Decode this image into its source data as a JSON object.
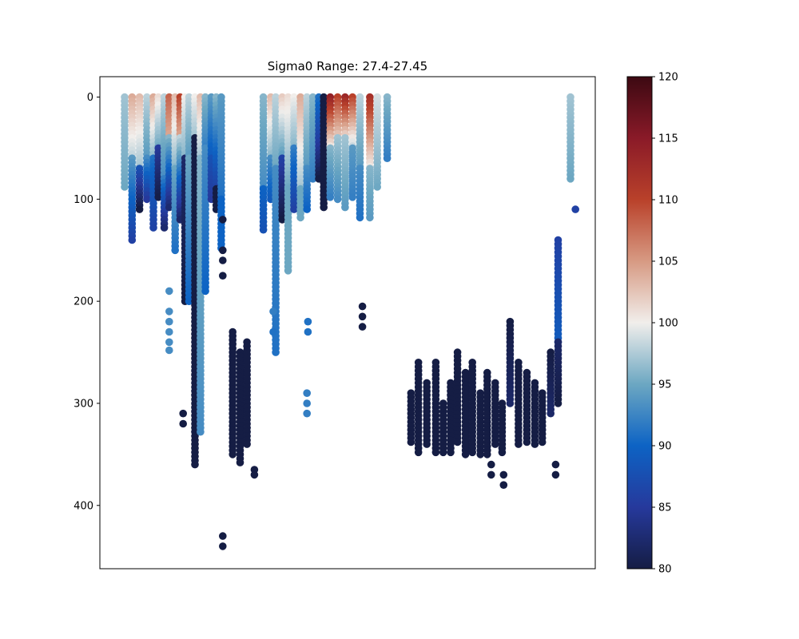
{
  "chart_data": {
    "type": "scatter",
    "title": "Sigma0 Range: 27.4-27.45",
    "xlabel": "",
    "ylabel": "",
    "y_inverted": true,
    "ylim": [
      462,
      -20
    ],
    "y_ticks": [
      0,
      100,
      200,
      300,
      400
    ],
    "x_ticks": [],
    "colormap": "balance (navy - blue - light gray - red - dark maroon)",
    "colorbar": {
      "vmin": 80,
      "vmax": 120,
      "ticks": [
        80,
        85,
        90,
        95,
        100,
        105,
        110,
        115,
        120
      ]
    },
    "profiles": [
      {
        "x": 0.05,
        "segments": [
          [
            0,
            90,
            97,
            95
          ]
        ]
      },
      {
        "x": 0.065,
        "segments": [
          [
            0,
            60,
            104,
            98
          ],
          [
            60,
            140,
            94,
            86
          ]
        ]
      },
      {
        "x": 0.08,
        "segments": [
          [
            0,
            70,
            103,
            97
          ],
          [
            70,
            110,
            88,
            80
          ]
        ]
      },
      {
        "x": 0.095,
        "segments": [
          [
            0,
            60,
            98,
            94
          ],
          [
            60,
            100,
            93,
            85
          ]
        ]
      },
      {
        "x": 0.108,
        "segments": [
          [
            0,
            60,
            104,
            96
          ],
          [
            60,
            130,
            91,
            86
          ]
        ]
      },
      {
        "x": 0.118,
        "segments": [
          [
            0,
            50,
            101,
            95
          ],
          [
            50,
            100,
            85,
            80
          ]
        ]
      },
      {
        "x": 0.13,
        "segments": [
          [
            0,
            80,
            98,
            93
          ],
          [
            80,
            130,
            92,
            82
          ]
        ]
      },
      {
        "x": 0.14,
        "segments": [
          [
            0,
            40,
            108,
            104
          ],
          [
            40,
            110,
            96,
            82
          ]
        ]
      },
      {
        "x": 0.152,
        "segments": [
          [
            0,
            70,
            103,
            96
          ],
          [
            70,
            150,
            95,
            91
          ]
        ]
      },
      {
        "x": 0.162,
        "segments": [
          [
            0,
            40,
            110,
            104
          ],
          [
            40,
            120,
            98,
            82
          ]
        ]
      },
      {
        "x": 0.172,
        "segments": [
          [
            0,
            60,
            100,
            96
          ],
          [
            60,
            200,
            82,
            80
          ]
        ]
      },
      {
        "x": 0.18,
        "segments": [
          [
            0,
            60,
            98,
            94
          ],
          [
            60,
            200,
            95,
            90
          ]
        ]
      },
      {
        "x": 0.192,
        "segments": [
          [
            0,
            40,
            100,
            97
          ],
          [
            40,
            360,
            80,
            80
          ]
        ]
      },
      {
        "x": 0.203,
        "segments": [
          [
            0,
            60,
            103,
            97
          ],
          [
            60,
            330,
            96,
            93
          ]
        ]
      },
      {
        "x": 0.213,
        "segments": [
          [
            0,
            50,
            96,
            92
          ],
          [
            50,
            190,
            93,
            90
          ]
        ]
      },
      {
        "x": 0.225,
        "segments": [
          [
            0,
            60,
            94,
            89
          ],
          [
            60,
            100,
            88,
            85
          ]
        ]
      },
      {
        "x": 0.235,
        "segments": [
          [
            0,
            90,
            96,
            86
          ],
          [
            90,
            110,
            80,
            80
          ]
        ]
      },
      {
        "x": 0.245,
        "segments": [
          [
            0,
            100,
            94,
            91
          ],
          [
            100,
            150,
            90,
            90
          ]
        ]
      },
      {
        "x": 0.268,
        "segments": [
          [
            230,
            350,
            80,
            80
          ]
        ]
      },
      {
        "x": 0.283,
        "segments": [
          [
            250,
            360,
            80,
            80
          ]
        ]
      },
      {
        "x": 0.297,
        "segments": [
          [
            240,
            340,
            80,
            80
          ]
        ]
      },
      {
        "x": 0.33,
        "segments": [
          [
            0,
            90,
            96,
            93
          ],
          [
            90,
            130,
            90,
            88
          ]
        ]
      },
      {
        "x": 0.345,
        "segments": [
          [
            0,
            60,
            103,
            96
          ],
          [
            60,
            100,
            93,
            89
          ]
        ]
      },
      {
        "x": 0.355,
        "segments": [
          [
            0,
            70,
            98,
            95
          ],
          [
            70,
            250,
            93,
            91
          ]
        ]
      },
      {
        "x": 0.368,
        "segments": [
          [
            0,
            60,
            102,
            94
          ],
          [
            60,
            120,
            86,
            80
          ]
        ]
      },
      {
        "x": 0.38,
        "segments": [
          [
            0,
            90,
            101,
            95
          ],
          [
            90,
            170,
            95,
            95
          ]
        ]
      },
      {
        "x": 0.392,
        "segments": [
          [
            0,
            50,
            100,
            96
          ],
          [
            50,
            110,
            92,
            86
          ]
        ]
      },
      {
        "x": 0.405,
        "segments": [
          [
            0,
            90,
            104,
            97
          ],
          [
            90,
            120,
            95,
            95
          ]
        ]
      },
      {
        "x": 0.418,
        "segments": [
          [
            0,
            70,
            98,
            94
          ],
          [
            70,
            110,
            93,
            90
          ]
        ]
      },
      {
        "x": 0.43,
        "segments": [
          [
            0,
            80,
            96,
            92
          ]
        ]
      },
      {
        "x": 0.442,
        "segments": [
          [
            0,
            40,
            91,
            86
          ],
          [
            40,
            80,
            86,
            80
          ]
        ]
      },
      {
        "x": 0.452,
        "segments": [
          [
            0,
            110,
            80,
            80
          ]
        ]
      },
      {
        "x": 0.465,
        "segments": [
          [
            0,
            50,
            114,
            100
          ],
          [
            50,
            100,
            96,
            92
          ]
        ]
      },
      {
        "x": 0.48,
        "segments": [
          [
            0,
            40,
            110,
            102
          ],
          [
            40,
            100,
            97,
            93
          ]
        ]
      },
      {
        "x": 0.495,
        "segments": [
          [
            0,
            40,
            113,
            101
          ],
          [
            40,
            110,
            97,
            94
          ]
        ]
      },
      {
        "x": 0.51,
        "segments": [
          [
            0,
            50,
            110,
            98
          ],
          [
            50,
            100,
            94,
            92
          ]
        ]
      },
      {
        "x": 0.525,
        "segments": [
          [
            0,
            70,
            98,
            94
          ],
          [
            70,
            120,
            93,
            91
          ]
        ]
      },
      {
        "x": 0.545,
        "segments": [
          [
            0,
            70,
            112,
            100
          ],
          [
            70,
            120,
            96,
            94
          ]
        ]
      },
      {
        "x": 0.56,
        "segments": [
          [
            0,
            90,
            99,
            95
          ]
        ]
      },
      {
        "x": 0.58,
        "segments": [
          [
            0,
            60,
            96,
            92
          ]
        ]
      },
      {
        "x": 0.628,
        "segments": [
          [
            290,
            340,
            80,
            80
          ]
        ]
      },
      {
        "x": 0.643,
        "segments": [
          [
            260,
            350,
            80,
            80
          ]
        ]
      },
      {
        "x": 0.66,
        "segments": [
          [
            280,
            340,
            80,
            80
          ]
        ]
      },
      {
        "x": 0.678,
        "segments": [
          [
            260,
            350,
            80,
            80
          ]
        ]
      },
      {
        "x": 0.693,
        "segments": [
          [
            300,
            350,
            80,
            80
          ]
        ]
      },
      {
        "x": 0.708,
        "segments": [
          [
            280,
            350,
            80,
            80
          ]
        ]
      },
      {
        "x": 0.722,
        "segments": [
          [
            250,
            340,
            80,
            80
          ]
        ]
      },
      {
        "x": 0.738,
        "segments": [
          [
            270,
            350,
            80,
            80
          ]
        ]
      },
      {
        "x": 0.752,
        "segments": [
          [
            260,
            350,
            80,
            80
          ]
        ]
      },
      {
        "x": 0.768,
        "segments": [
          [
            290,
            350,
            80,
            80
          ]
        ]
      },
      {
        "x": 0.782,
        "segments": [
          [
            270,
            350,
            80,
            80
          ]
        ]
      },
      {
        "x": 0.798,
        "segments": [
          [
            280,
            340,
            80,
            80
          ]
        ]
      },
      {
        "x": 0.812,
        "segments": [
          [
            300,
            350,
            80,
            80
          ]
        ]
      },
      {
        "x": 0.828,
        "segments": [
          [
            220,
            300,
            80,
            82
          ]
        ]
      },
      {
        "x": 0.845,
        "segments": [
          [
            260,
            340,
            80,
            80
          ]
        ]
      },
      {
        "x": 0.862,
        "segments": [
          [
            270,
            340,
            80,
            80
          ]
        ]
      },
      {
        "x": 0.878,
        "segments": [
          [
            280,
            340,
            80,
            80
          ]
        ]
      },
      {
        "x": 0.893,
        "segments": [
          [
            290,
            340,
            80,
            80
          ]
        ]
      },
      {
        "x": 0.91,
        "segments": [
          [
            250,
            310,
            80,
            82
          ]
        ]
      },
      {
        "x": 0.925,
        "segments": [
          [
            140,
            240,
            86,
            89
          ],
          [
            240,
            300,
            82,
            80
          ]
        ]
      },
      {
        "x": 0.95,
        "segments": [
          [
            0,
            80,
            97,
            95
          ]
        ]
      }
    ],
    "points": [
      [
        0.248,
        120,
        80
      ],
      [
        0.248,
        150,
        80
      ],
      [
        0.248,
        160,
        80
      ],
      [
        0.248,
        175,
        80
      ],
      [
        0.248,
        430,
        80
      ],
      [
        0.248,
        440,
        80
      ],
      [
        0.14,
        190,
        93
      ],
      [
        0.14,
        210,
        93
      ],
      [
        0.14,
        220,
        93
      ],
      [
        0.14,
        230,
        93
      ],
      [
        0.14,
        240,
        93
      ],
      [
        0.14,
        248,
        93
      ],
      [
        0.168,
        310,
        80
      ],
      [
        0.168,
        320,
        80
      ],
      [
        0.42,
        220,
        91
      ],
      [
        0.42,
        230,
        91
      ],
      [
        0.418,
        290,
        92
      ],
      [
        0.418,
        300,
        92
      ],
      [
        0.418,
        310,
        92
      ],
      [
        0.35,
        210,
        92
      ],
      [
        0.35,
        230,
        91
      ],
      [
        0.53,
        205,
        80
      ],
      [
        0.53,
        215,
        80
      ],
      [
        0.53,
        225,
        80
      ],
      [
        0.96,
        110,
        86
      ],
      [
        0.312,
        365,
        80
      ],
      [
        0.312,
        370,
        80
      ],
      [
        0.815,
        370,
        80
      ],
      [
        0.815,
        380,
        80
      ],
      [
        0.92,
        360,
        80
      ],
      [
        0.92,
        370,
        80
      ],
      [
        0.79,
        360,
        80
      ],
      [
        0.79,
        370,
        80
      ]
    ]
  }
}
